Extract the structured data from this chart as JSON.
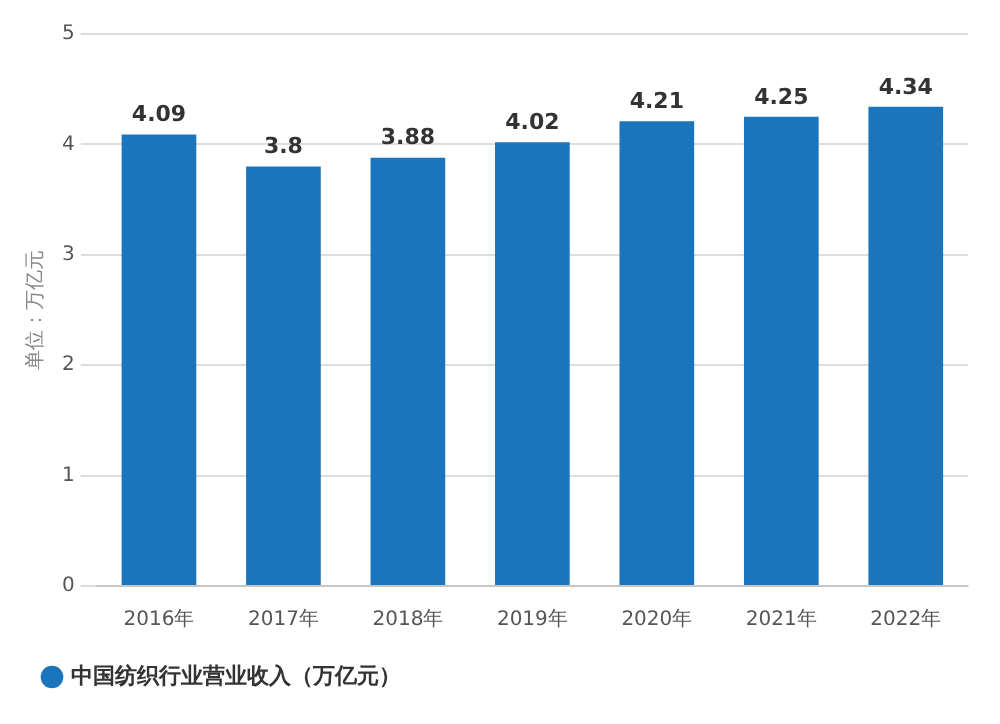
{
  "chart_data": {
    "type": "bar",
    "ylabel": "单位：万亿元",
    "categories": [
      "2016年",
      "2017年",
      "2018年",
      "2019年",
      "2020年",
      "2021年",
      "2022年"
    ],
    "series": [
      {
        "name": "中国纺织行业营业收入（万亿元）",
        "color": "#1a75bc",
        "values": [
          4.09,
          3.8,
          3.88,
          4.02,
          4.21,
          4.25,
          4.34
        ]
      }
    ],
    "ylim": [
      0,
      5
    ],
    "yticks": [
      0,
      1,
      2,
      3,
      4,
      5
    ],
    "grid": "y",
    "legend": "bottom left",
    "data_labels": true
  }
}
